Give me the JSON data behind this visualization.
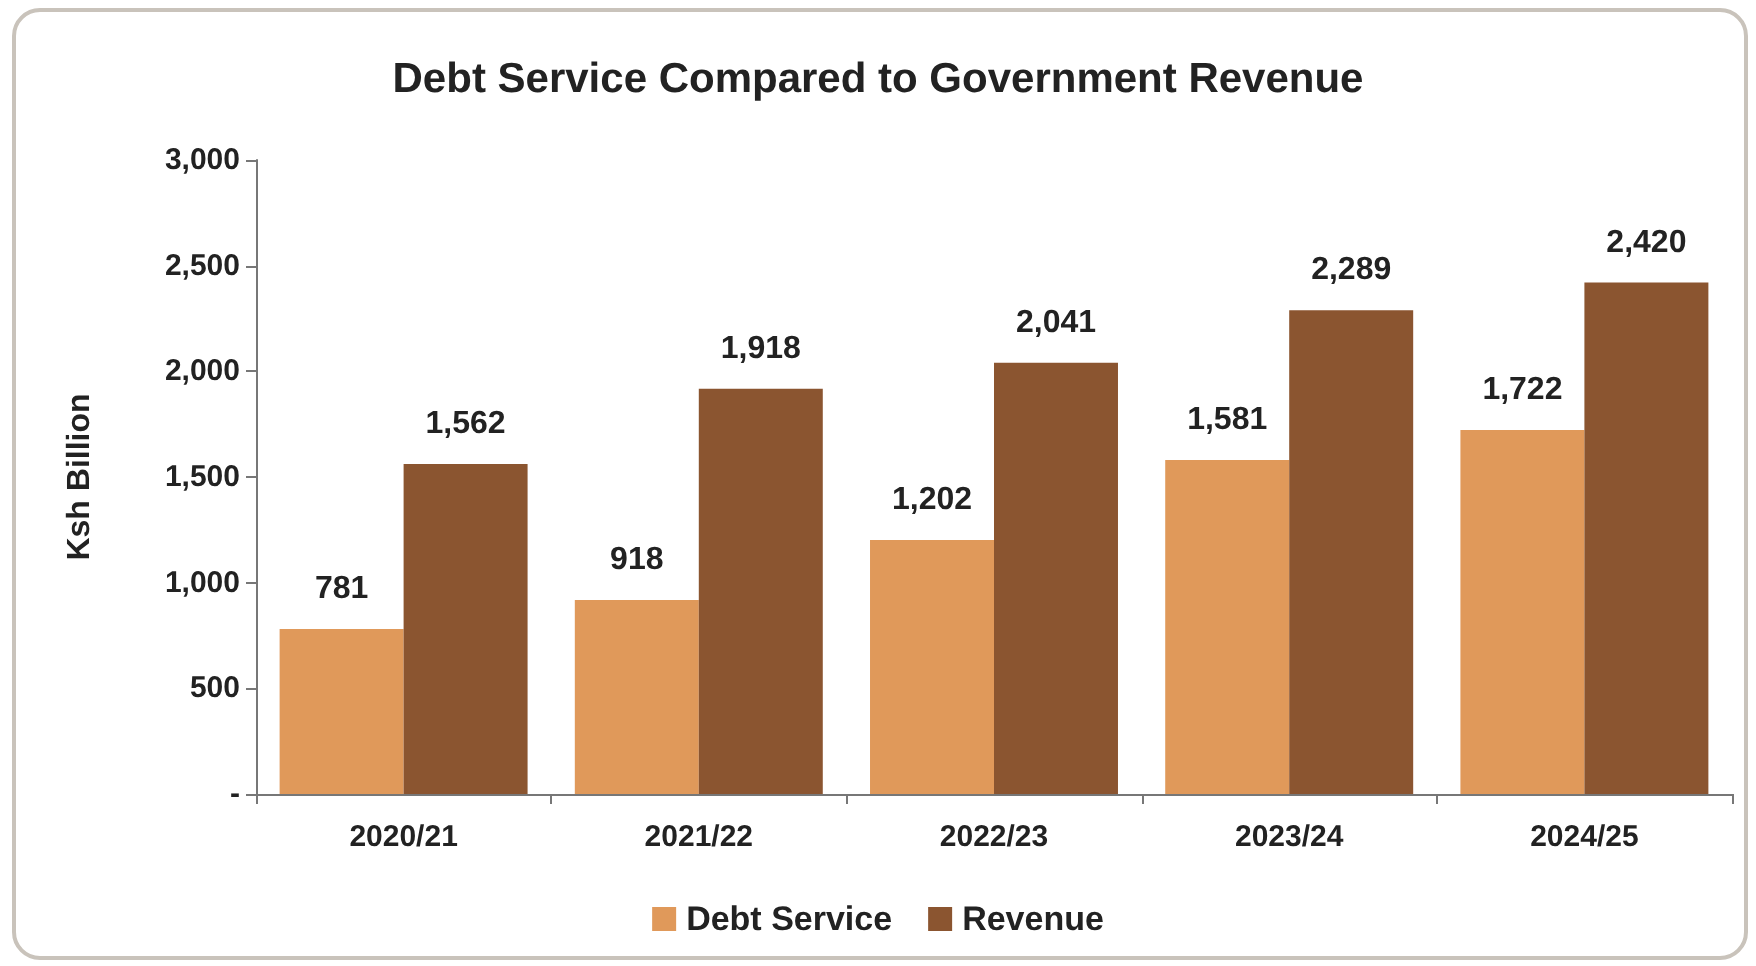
{
  "chart_data": {
    "type": "bar",
    "title": "Debt Service Compared to Government Revenue",
    "ylabel": "Ksh Billion",
    "categories": [
      "2020/21",
      "2021/22",
      "2022/23",
      "2023/24",
      "2024/25"
    ],
    "series": [
      {
        "name": "Debt Service",
        "color": "#e0995a",
        "values": [
          781,
          918,
          1202,
          1581,
          1722
        ],
        "value_labels": [
          "781",
          "918",
          "1,202",
          "1,581",
          "1,722"
        ]
      },
      {
        "name": "Revenue",
        "color": "#8b5530",
        "values": [
          1562,
          1918,
          2041,
          2289,
          2420
        ],
        "value_labels": [
          "1,562",
          "1,918",
          "2,041",
          "2,289",
          "2,420"
        ]
      }
    ],
    "ylim": [
      0,
      3000
    ],
    "yticks": [
      {
        "value": 0,
        "label": "-"
      },
      {
        "value": 500,
        "label": "500"
      },
      {
        "value": 1000,
        "label": "1,000"
      },
      {
        "value": 1500,
        "label": "1,500"
      },
      {
        "value": 2000,
        "label": "2,000"
      },
      {
        "value": 2500,
        "label": "2,500"
      },
      {
        "value": 3000,
        "label": "3,000"
      }
    ],
    "grid": false,
    "legend": "bottom"
  }
}
